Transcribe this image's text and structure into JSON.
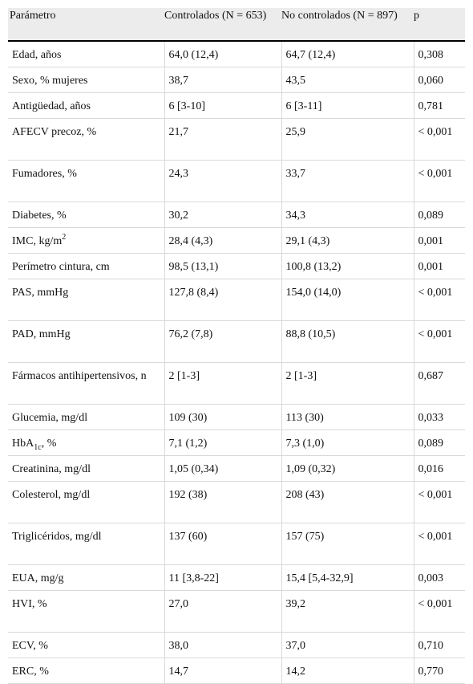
{
  "headers": [
    "Parámetro",
    "Controlados (N = 653)",
    "No controlados (N = 897)",
    "p"
  ],
  "rows": [
    {
      "param": "Edad, años",
      "controlados": "64,0 (12,4)",
      "no_controlados": "64,7 (12,4)",
      "p": "0,308"
    },
    {
      "param": "Sexo, % mujeres",
      "controlados": "38,7",
      "no_controlados": "43,5",
      "p": "0,060"
    },
    {
      "param": "Antigüedad, años",
      "controlados": "6 [3-10]",
      "no_controlados": "6 [3-11]",
      "p": "0,781"
    },
    {
      "param": "AFECV precoz, %",
      "controlados": "21,7",
      "no_controlados": "25,9",
      "p": "< 0,001"
    },
    {
      "param": "Fumadores, %",
      "controlados": "24,3",
      "no_controlados": "33,7",
      "p": "< 0,001"
    },
    {
      "param": "Diabetes, %",
      "controlados": "30,2",
      "no_controlados": "34,3",
      "p": "0,089"
    },
    {
      "param": "IMC, kg/m",
      "param_sup": "2",
      "controlados": "28,4 (4,3)",
      "no_controlados": "29,1 (4,3)",
      "p": "0,001"
    },
    {
      "param": "Perímetro cintura, cm",
      "controlados": "98,5 (13,1)",
      "no_controlados": "100,8 (13,2)",
      "p": "0,001"
    },
    {
      "param": "PAS, mmHg",
      "controlados": "127,8 (8,4)",
      "no_controlados": "154,0 (14,0)",
      "p": "< 0,001"
    },
    {
      "param": "PAD, mmHg",
      "controlados": "76,2 (7,8)",
      "no_controlados": "88,8 (10,5)",
      "p": "< 0,001"
    },
    {
      "param": "Fármacos antihipertensivos, n",
      "controlados": "2 [1-3]",
      "no_controlados": "2 [1-3]",
      "p": "0,687"
    },
    {
      "param": "Glucemia, mg/dl",
      "controlados": "109 (30)",
      "no_controlados": "113 (30)",
      "p": "0,033"
    },
    {
      "param": "HbA",
      "param_sub": "1c",
      "param_suffix": ", %",
      "controlados": "7,1 (1,2)",
      "no_controlados": "7,3 (1,0)",
      "p": "0,089"
    },
    {
      "param": "Creatinina, mg/dl",
      "controlados": "1,05 (0,34)",
      "no_controlados": "1,09 (0,32)",
      "p": "0,016"
    },
    {
      "param": "Colesterol, mg/dl",
      "controlados": "192 (38)",
      "no_controlados": "208 (43)",
      "p": "< 0,001"
    },
    {
      "param": "Triglicéridos, mg/dl",
      "controlados": "137 (60)",
      "no_controlados": "157 (75)",
      "p": "< 0,001"
    },
    {
      "param": "EUA, mg/g",
      "controlados": "11 [3,8-22]",
      "no_controlados": "15,4 [5,4-32,9]",
      "p": "0,003"
    },
    {
      "param": "HVI, %",
      "controlados": "27,0",
      "no_controlados": "39,2",
      "p": "< 0,001"
    },
    {
      "param": "ECV, %",
      "controlados": "38,0",
      "no_controlados": "37,0",
      "p": "0,710"
    },
    {
      "param": "ERC, %",
      "controlados": "14,7",
      "no_controlados": "14,2",
      "p": "0,770"
    }
  ]
}
